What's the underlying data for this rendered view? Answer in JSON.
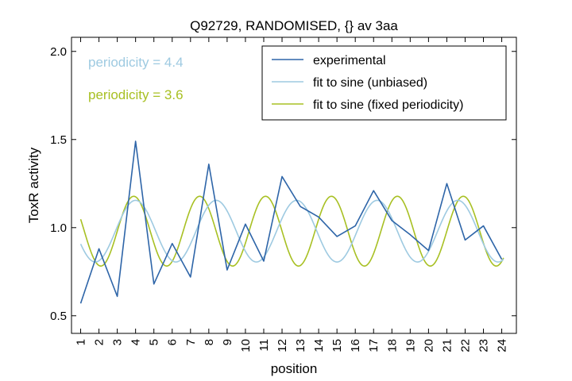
{
  "chart_data": {
    "type": "line",
    "title": "Q92729, RANDOMISED, {} av 3aa",
    "xlabel": "position",
    "ylabel": "ToxR activity",
    "xlim": [
      0.5,
      24.8
    ],
    "ylim": [
      0.4,
      2.08
    ],
    "yticks": [
      0.5,
      1.0,
      1.5,
      2.0
    ],
    "ytick_labels": [
      "0.5",
      "1.0",
      "1.5",
      "2.0"
    ],
    "x": [
      1,
      2,
      3,
      4,
      5,
      6,
      7,
      8,
      9,
      10,
      11,
      12,
      13,
      14,
      15,
      16,
      17,
      18,
      19,
      20,
      21,
      22,
      23,
      24
    ],
    "xtick_labels": [
      "1",
      "2",
      "3",
      "4",
      "5",
      "6",
      "7",
      "8",
      "9",
      "10",
      "11",
      "12",
      "13",
      "14",
      "15",
      "16",
      "17",
      "18",
      "19",
      "20",
      "21",
      "22",
      "23",
      "24"
    ],
    "grid": false,
    "legend_position": "top-right",
    "series": [
      {
        "name": "experimental",
        "color": "#2e65a8",
        "values": [
          0.57,
          0.88,
          0.61,
          1.49,
          0.68,
          0.91,
          0.72,
          1.36,
          0.76,
          1.02,
          0.81,
          1.29,
          1.12,
          1.06,
          0.95,
          1.01,
          1.21,
          1.04,
          0.96,
          0.87,
          1.25,
          0.93,
          1.01,
          0.82
        ]
      },
      {
        "name": "fit to sine (unbiased)",
        "color": "#9ecae1",
        "curve": {
          "mean": 0.98,
          "amplitude": 0.175,
          "period": 4.4,
          "peak_x": 4.0,
          "x_range": [
            1,
            24.1
          ]
        }
      },
      {
        "name": "fit to sine (fixed periodicity)",
        "color": "#a8c023",
        "curve": {
          "mean": 0.98,
          "amplitude": 0.198,
          "period": 3.6,
          "peak_x": 3.9,
          "x_range": [
            1,
            24.1
          ]
        }
      }
    ],
    "annotations": [
      {
        "text": "periodicity = 4.4",
        "color": "#9ecae1"
      },
      {
        "text": "periodicity = 3.6",
        "color": "#a8c023"
      }
    ]
  }
}
